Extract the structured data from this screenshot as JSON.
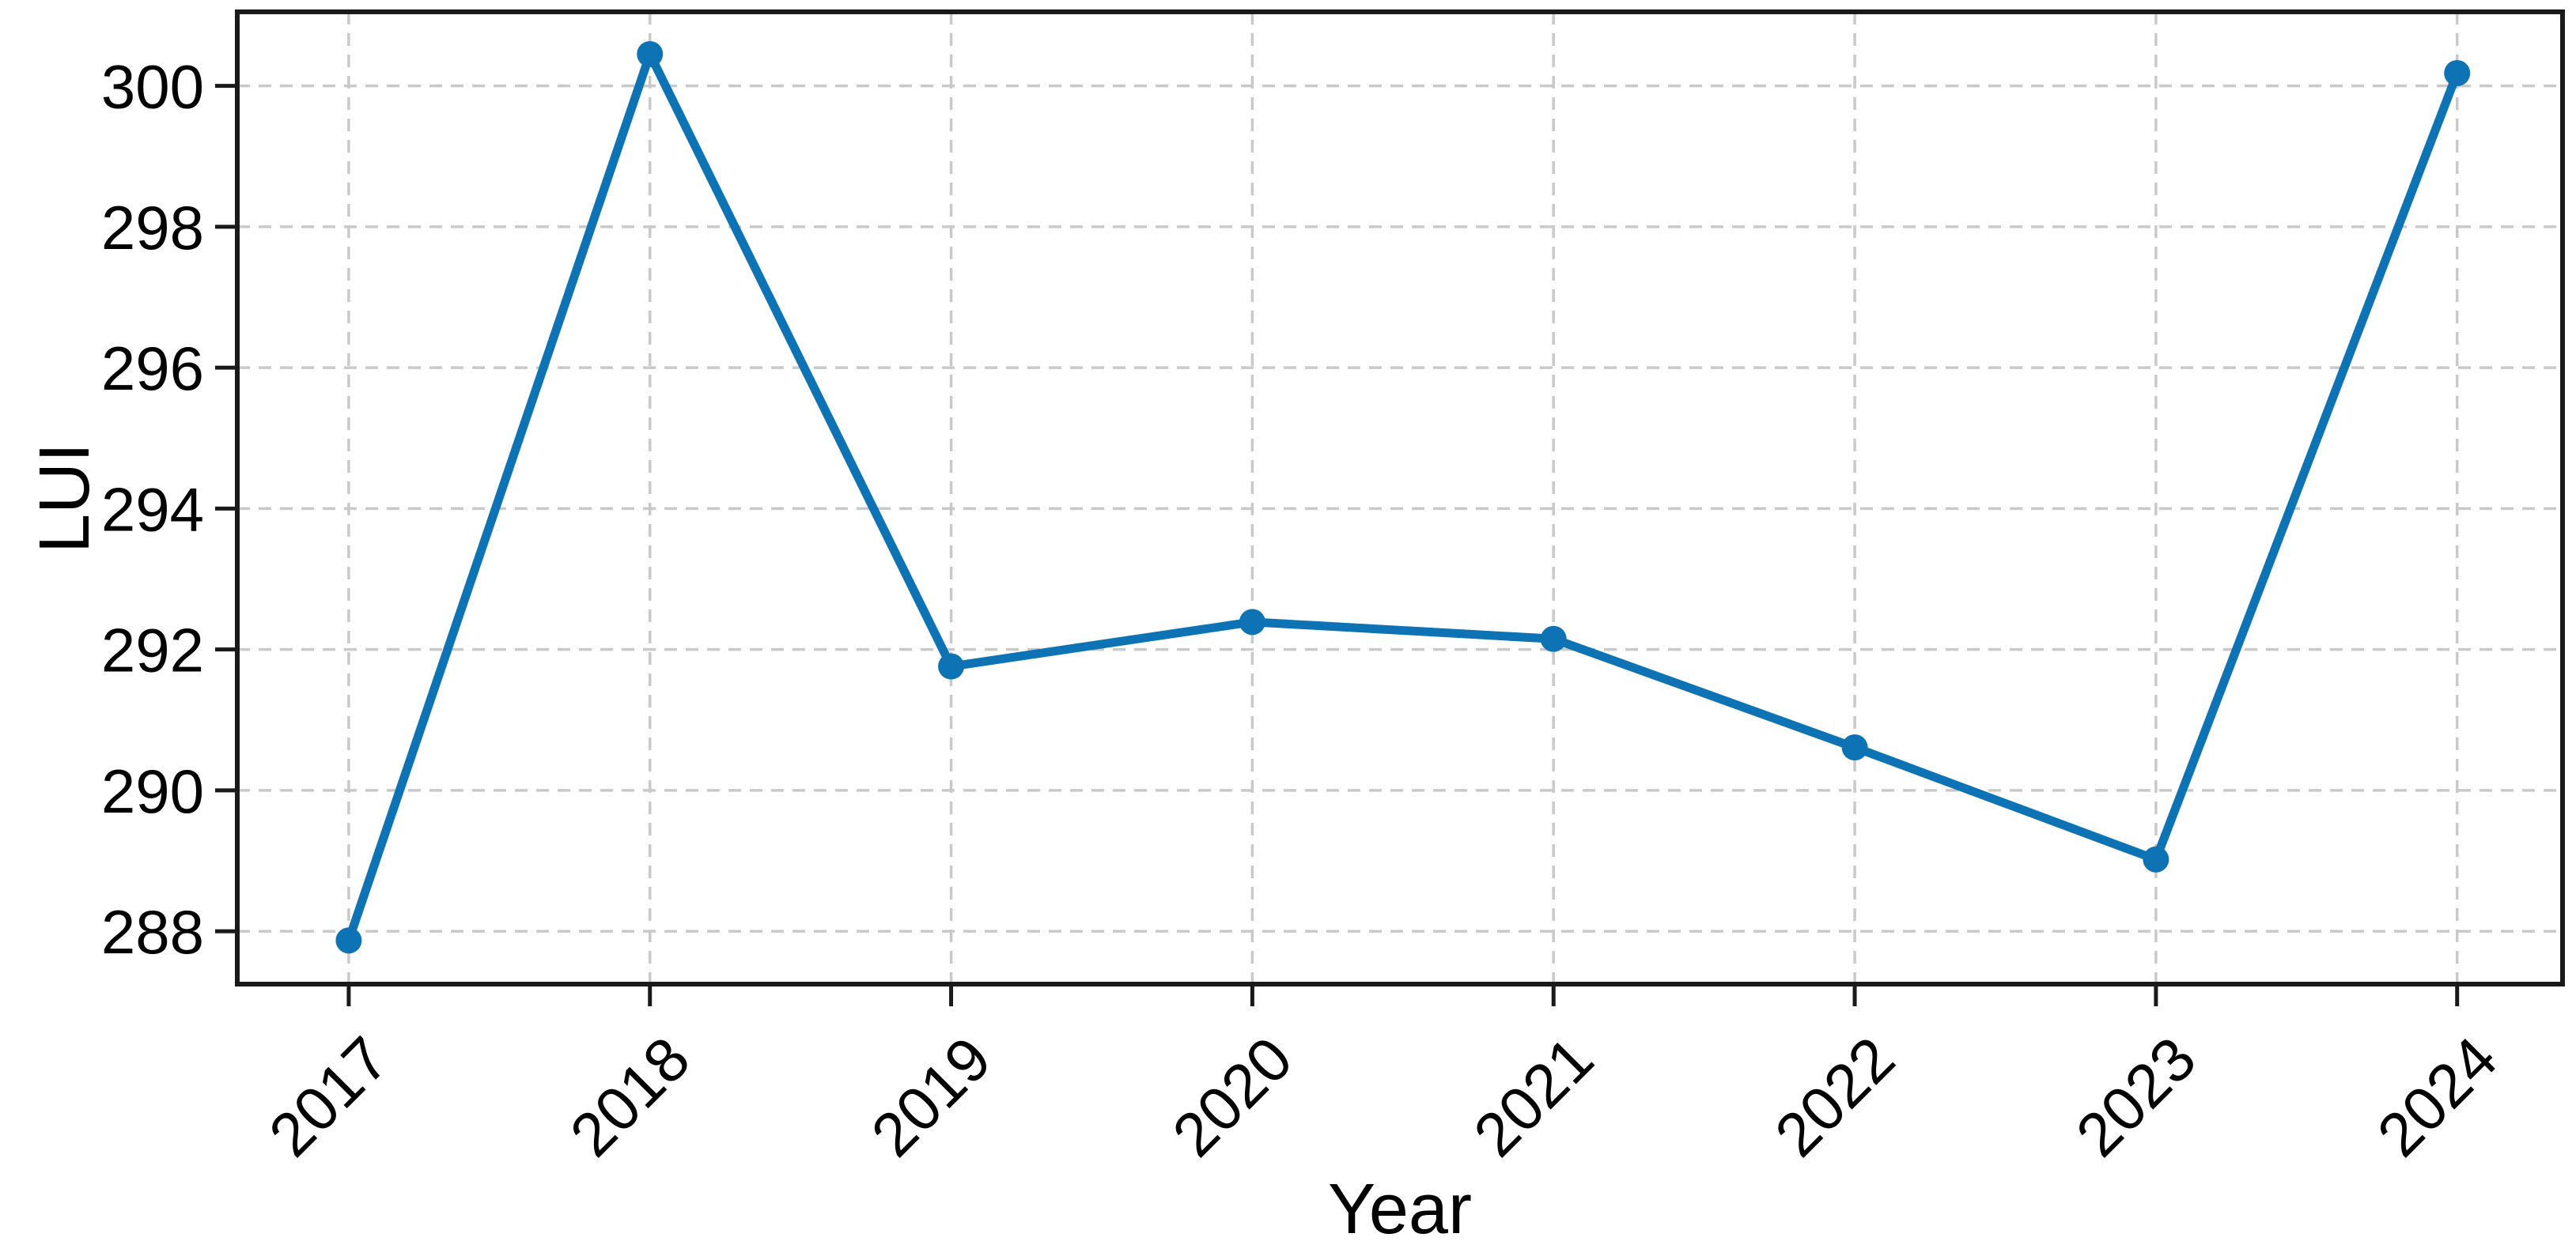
{
  "chart_data": {
    "type": "line",
    "title": "",
    "xlabel": "Year",
    "ylabel": "LUI",
    "x": [
      2017,
      2018,
      2019,
      2020,
      2021,
      2022,
      2023,
      2024
    ],
    "series": [
      {
        "name": "LUI",
        "values": [
          287.87,
          300.45,
          291.76,
          292.39,
          292.15,
          290.61,
          289.02,
          300.18
        ]
      }
    ],
    "x_tick_labels": [
      "2017",
      "2018",
      "2019",
      "2020",
      "2021",
      "2022",
      "2023",
      "2024"
    ],
    "y_ticks": [
      288,
      290,
      292,
      294,
      296,
      298,
      300
    ],
    "xlim": [
      2016.63,
      2024.35
    ],
    "ylim": [
      287.25,
      301.05
    ],
    "x_tick_rotation_deg": 45,
    "grid": "on",
    "grid_style": "dashed",
    "legend_position": "none",
    "line_color": "#0d73b5",
    "marker": "circle",
    "marker_color": "#0d73b5",
    "grid_color": "#c9c9c9",
    "spine_color": "#1a1a1a",
    "tick_color": "#1a1a1a",
    "text_color": "#000000"
  }
}
